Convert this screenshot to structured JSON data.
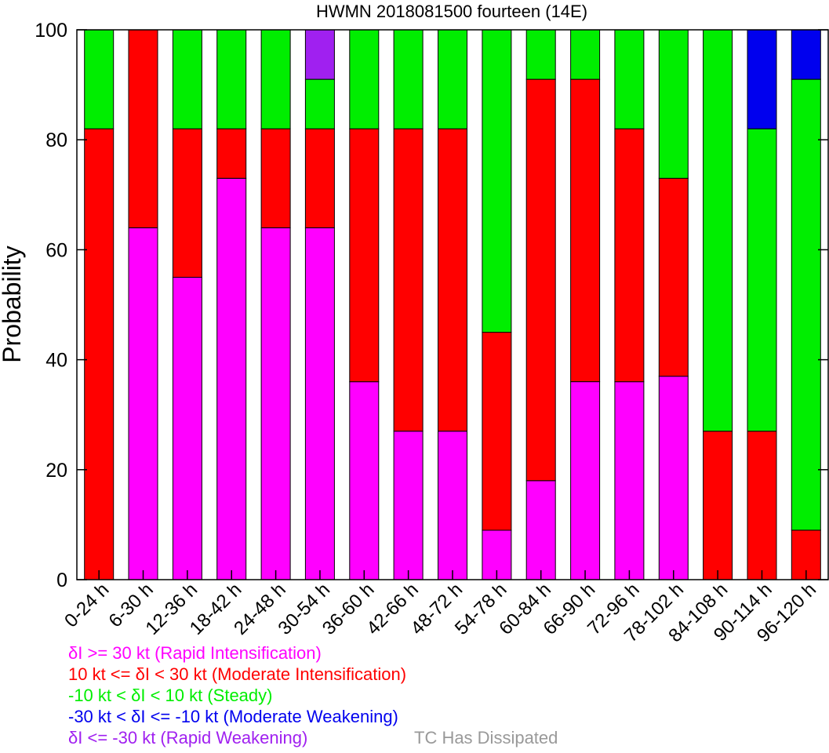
{
  "chart_data": {
    "type": "bar",
    "stacked": true,
    "title": "HWMN 2018081500 fourteen (14E)",
    "xlabel": "",
    "ylabel": "Probability",
    "ylim": [
      0,
      100
    ],
    "yticks": [
      0,
      20,
      40,
      60,
      80,
      100
    ],
    "grid": false,
    "categories": [
      "0-24 h",
      "6-30 h",
      "12-36 h",
      "18-42 h",
      "24-48 h",
      "30-54 h",
      "36-60 h",
      "42-66 h",
      "48-72 h",
      "54-78 h",
      "60-84 h",
      "66-90 h",
      "72-96 h",
      "78-102 h",
      "84-108 h",
      "90-114 h",
      "96-120 h"
    ],
    "series": [
      {
        "name": "δI >= 30 kt (Rapid Intensification)",
        "color": "#ff00ff",
        "values": [
          0,
          64,
          55,
          73,
          64,
          64,
          36,
          27,
          27,
          9,
          18,
          36,
          36,
          37,
          0,
          0,
          0
        ]
      },
      {
        "name": "10 kt <= δI < 30 kt (Moderate Intensification)",
        "color": "#ff0000",
        "values": [
          82,
          36,
          27,
          9,
          18,
          18,
          46,
          55,
          55,
          36,
          73,
          55,
          46,
          36,
          27,
          27,
          9
        ]
      },
      {
        "name": "-10 kt < δI < 10 kt (Steady)",
        "color": "#00ee00",
        "values": [
          18,
          0,
          18,
          18,
          18,
          9,
          18,
          18,
          18,
          55,
          9,
          9,
          18,
          27,
          73,
          55,
          82
        ]
      },
      {
        "name": "-30 kt < δI <= -10 kt (Moderate Weakening)",
        "color": "#0000ee",
        "values": [
          0,
          0,
          0,
          0,
          0,
          0,
          0,
          0,
          0,
          0,
          0,
          0,
          0,
          0,
          0,
          18,
          9
        ]
      },
      {
        "name": "δI <= -30 kt (Rapid Weakening)",
        "color": "#a020f0",
        "values": [
          0,
          0,
          0,
          0,
          0,
          9,
          0,
          0,
          0,
          0,
          0,
          0,
          0,
          0,
          0,
          0,
          0
        ]
      }
    ],
    "extra_legend": {
      "name": "TC Has Dissipated",
      "color": "#999999"
    }
  }
}
